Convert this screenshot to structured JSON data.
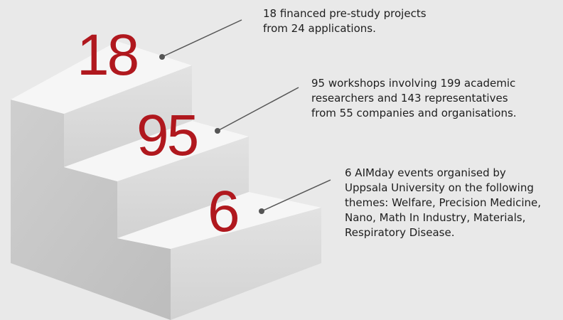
{
  "steps": [
    {
      "number": 18,
      "lines": [
        "18 financed pre-study projects",
        "from 24 applications."
      ]
    },
    {
      "number": 95,
      "lines": [
        "95 workshops involving 199 academic",
        "researchers and 143 representatives",
        "from 55 companies and organisations."
      ]
    },
    {
      "number": 6,
      "lines": [
        "6 AIMday events organised by",
        "Uppsala University on the following",
        "themes: Welfare, Precision Medicine,",
        "Nano, Math In Industry, Materials,",
        "Respiratory Disease."
      ]
    }
  ]
}
